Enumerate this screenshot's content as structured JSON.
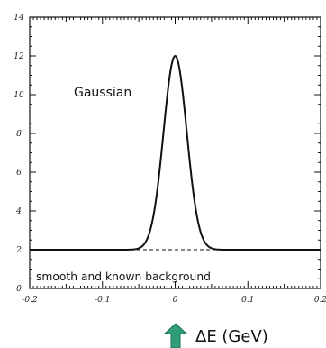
{
  "chart_data": {
    "type": "line",
    "title": "",
    "xlabel": "ΔE (GeV)",
    "ylabel": "",
    "xlim": [
      -0.2,
      0.2
    ],
    "ylim": [
      0,
      14
    ],
    "x_ticks": [
      -0.2,
      -0.1,
      0,
      0.1,
      0.2
    ],
    "x_tick_labels": [
      "-0.2",
      "-0.1",
      "0",
      "0.1",
      "0.2"
    ],
    "y_ticks": [
      0,
      2,
      4,
      6,
      8,
      10,
      12,
      14
    ],
    "y_tick_labels": [
      "0",
      "2",
      "4",
      "6",
      "8",
      "10",
      "12",
      "14"
    ],
    "grid": false,
    "series": [
      {
        "kind": "gaussian-plus-background",
        "style": "solid",
        "background": 2,
        "amplitude": 10,
        "mean": 0,
        "sigma": 0.016
      },
      {
        "kind": "flat-background",
        "style": "dashed",
        "y": 2
      }
    ],
    "annotations": {
      "peak_label": "Gaussian",
      "background_label": "smooth and known background"
    },
    "colors": {
      "curve": "#111111",
      "arrow": "#2f9d7a"
    }
  }
}
